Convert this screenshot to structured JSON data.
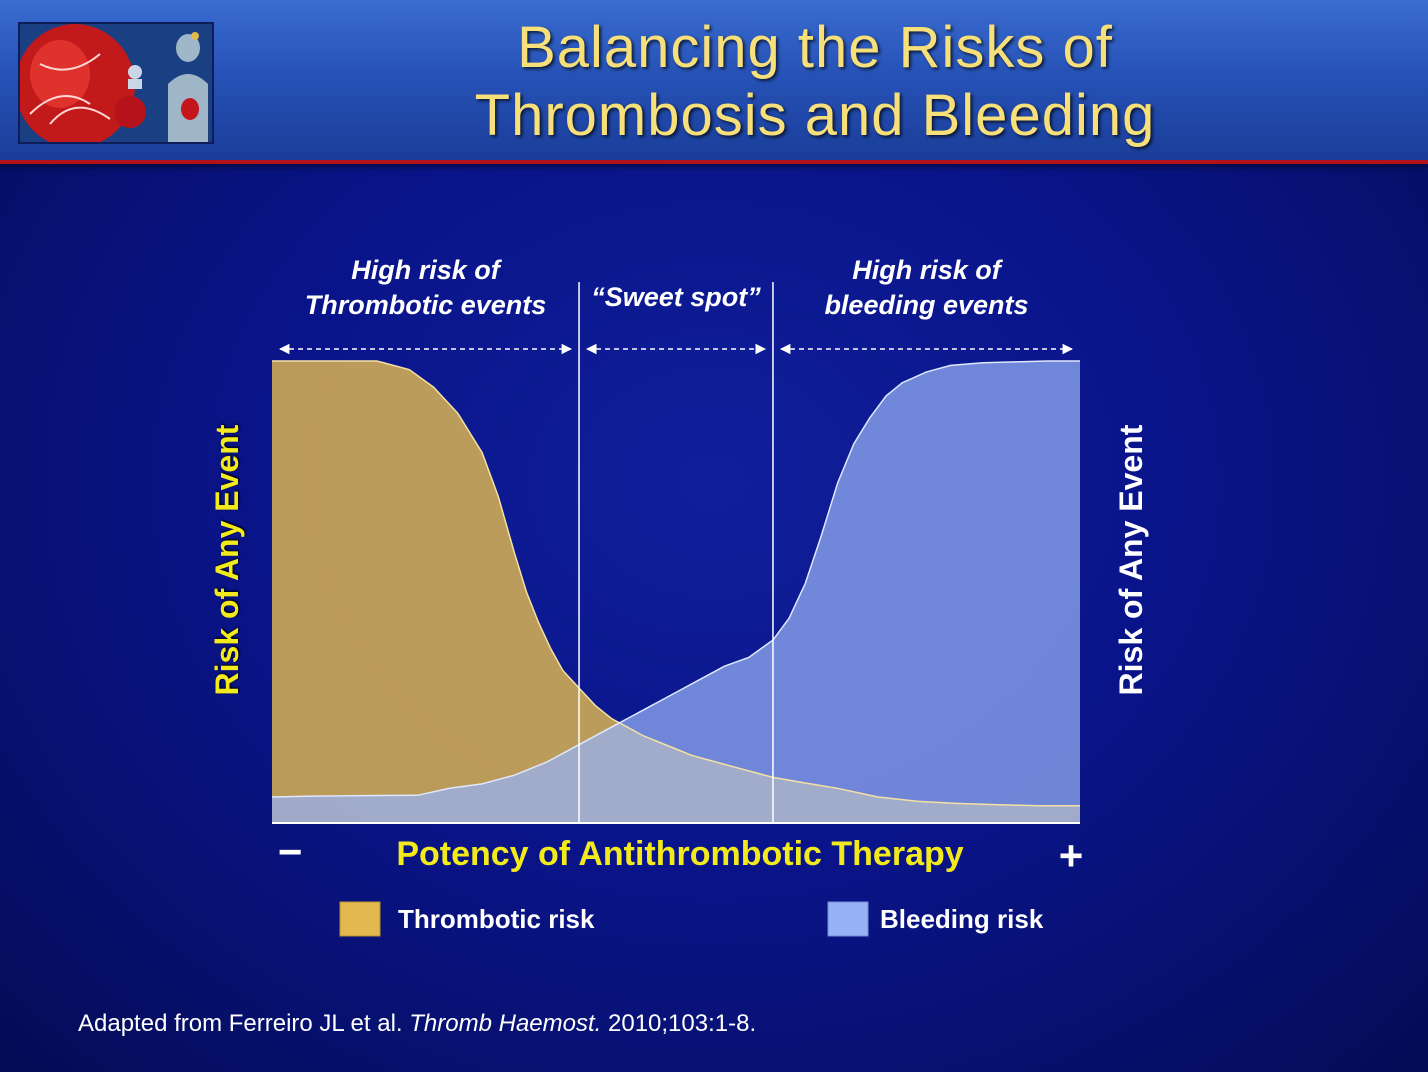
{
  "header": {
    "title_line1": "Balancing the Risks of",
    "title_line2": "Thrombosis and Bleeding",
    "image_icon": "heart-anatomy-image"
  },
  "colors": {
    "thrombotic": "#e3b94f",
    "bleeding": "#97b1f5",
    "title": "#f7e07a",
    "axis_label": "#f3ea1c",
    "background": "#0a148a"
  },
  "chart_data": {
    "type": "area",
    "xlabel": "Potency of Antithrombotic Therapy",
    "ylabel": "Risk of Any Event",
    "ylabel_right": "Risk of Any Event",
    "x_min_label": "−",
    "x_max_label": "+",
    "xlim": [
      0,
      100
    ],
    "ylim": [
      0,
      100
    ],
    "grid": false,
    "legend_position": "bottom",
    "regions": [
      {
        "label_line1": "High risk of",
        "label_line2": "Thrombotic events",
        "x_start": 0,
        "x_end": 38
      },
      {
        "label_line1": "“Sweet spot”",
        "label_line2": "",
        "x_start": 38,
        "x_end": 62
      },
      {
        "label_line1": "High risk of",
        "label_line2": "bleeding events",
        "x_start": 62,
        "x_end": 100
      }
    ],
    "dividers_x": [
      38,
      62
    ],
    "series": [
      {
        "name": "Thrombotic risk",
        "x": [
          0,
          5,
          13,
          17,
          20,
          23,
          26,
          28,
          30,
          31.5,
          33,
          34.5,
          36,
          38,
          40,
          42,
          44,
          46,
          48,
          50,
          52,
          55,
          58,
          60,
          62,
          66,
          70,
          75,
          80,
          85,
          90,
          95,
          100
        ],
        "y": [
          100,
          100,
          100,
          98,
          94,
          88,
          79,
          69,
          56,
          47,
          40,
          34,
          29,
          25,
          21,
          18,
          16,
          14,
          12.5,
          11,
          9.5,
          8,
          6.5,
          5.5,
          4.5,
          3.2,
          2,
          0,
          -1,
          -1.5,
          -1.8,
          -2,
          -2
        ]
      },
      {
        "name": "Bleeding risk",
        "x": [
          0,
          5,
          10,
          18,
          22,
          26,
          30,
          34,
          38,
          42,
          46,
          50,
          53,
          56,
          59,
          62,
          64,
          66,
          68,
          70,
          72,
          74,
          76,
          78,
          81,
          84,
          88,
          92,
          96,
          100
        ],
        "y": [
          0,
          0.2,
          0.3,
          0.4,
          2,
          3,
          5,
          8,
          12,
          16,
          20,
          24,
          27,
          30,
          32,
          36,
          41,
          49,
          60,
          72,
          81,
          87,
          92,
          95,
          97.5,
          99,
          99.6,
          99.8,
          100,
          100
        ]
      }
    ]
  },
  "legend": {
    "items": [
      {
        "label": "Thrombotic risk"
      },
      {
        "label": "Bleeding risk"
      }
    ]
  },
  "footnote": {
    "prefix": "Adapted from Ferreiro JL et al. ",
    "journal": "Thromb Haemost.",
    "suffix": " 2010;103:1-8."
  }
}
